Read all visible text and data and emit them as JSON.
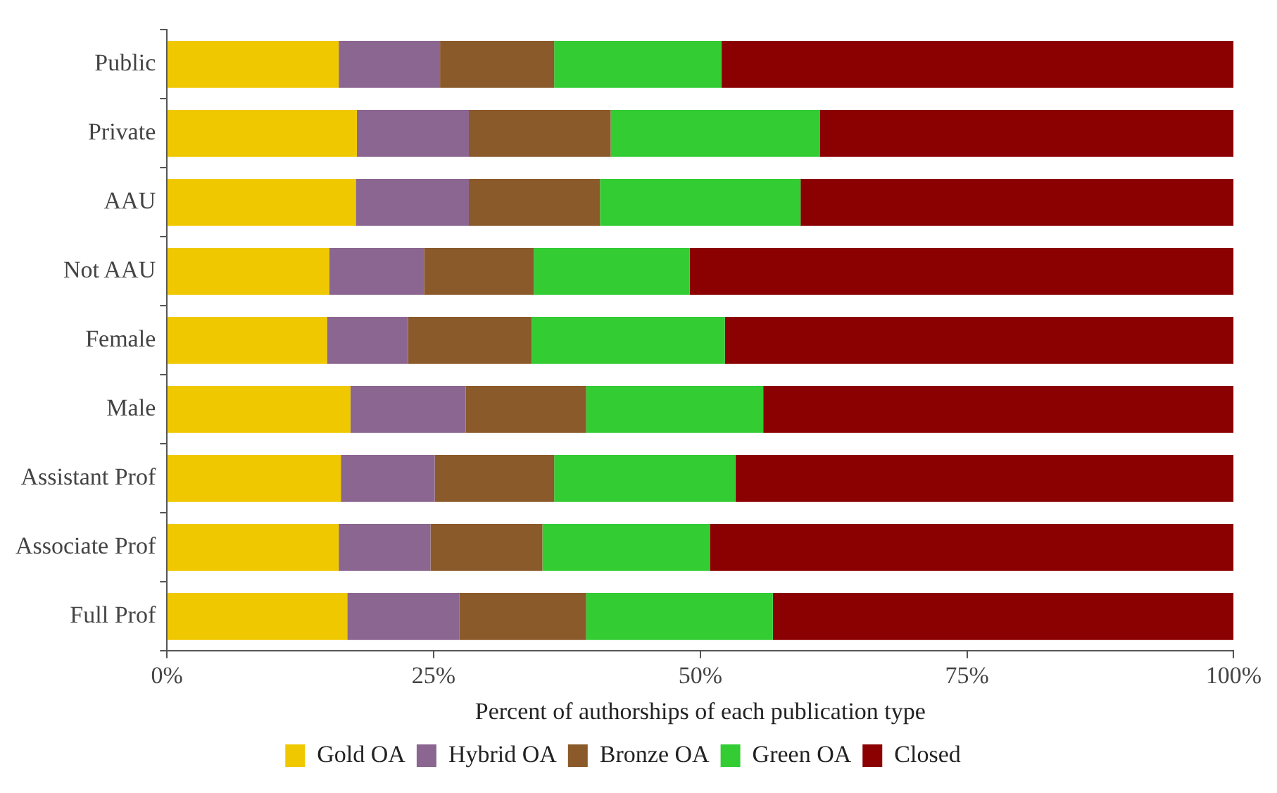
{
  "chart_data": {
    "type": "bar",
    "orientation": "horizontal",
    "stacked": true,
    "xlabel": "Percent of authorships of each publication type",
    "categories": [
      "Public",
      "Private",
      "AAU",
      "Not AAU",
      "Female",
      "Male",
      "Assistant Prof",
      "Associate Prof",
      "Full Prof"
    ],
    "series": [
      {
        "name": "Gold OA",
        "color": "#f0c800",
        "values": [
          16.1,
          17.8,
          17.7,
          15.2,
          15.0,
          17.2,
          16.3,
          16.1,
          16.9
        ]
      },
      {
        "name": "Hybrid OA",
        "color": "#8b6690",
        "values": [
          9.5,
          10.5,
          10.6,
          8.9,
          7.6,
          10.8,
          8.8,
          8.6,
          10.5
        ]
      },
      {
        "name": "Bronze OA",
        "color": "#8b5a2b",
        "values": [
          10.7,
          13.3,
          12.3,
          10.3,
          11.6,
          11.3,
          11.2,
          10.5,
          11.9
        ]
      },
      {
        "name": "Green OA",
        "color": "#33cc33",
        "values": [
          15.7,
          19.6,
          18.8,
          14.6,
          18.1,
          16.6,
          17.0,
          15.7,
          17.5
        ]
      },
      {
        "name": "Closed",
        "color": "#8b0000",
        "values": [
          48.0,
          38.8,
          40.6,
          51.0,
          47.7,
          44.1,
          46.7,
          49.1,
          43.2
        ]
      }
    ],
    "xlim": [
      0,
      100
    ],
    "xticks": [
      {
        "value": 0,
        "label": "0%"
      },
      {
        "value": 25,
        "label": "25%"
      },
      {
        "value": 50,
        "label": "50%"
      },
      {
        "value": 75,
        "label": "75%"
      },
      {
        "value": 100,
        "label": "100%"
      }
    ],
    "grid": false,
    "legend": "bottom"
  }
}
